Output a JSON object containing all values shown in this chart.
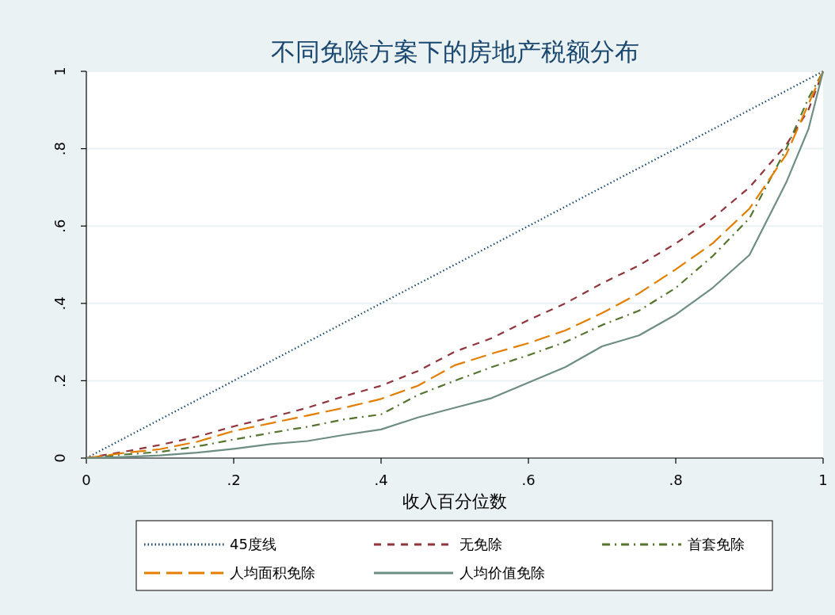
{
  "chart_data": {
    "type": "line",
    "title": "不同免除方案下的房地产税额分布",
    "xlabel": "收入百分位数",
    "x": [
      0,
      0.05,
      0.1,
      0.15,
      0.2,
      0.25,
      0.3,
      0.35,
      0.4,
      0.45,
      0.5,
      0.55,
      0.6,
      0.65,
      0.7,
      0.75,
      0.8,
      0.85,
      0.9,
      0.95,
      0.98,
      1
    ],
    "series": [
      {
        "name": "45度线",
        "color": "#1a476f",
        "line_style": "dotted",
        "x": [
          0,
          1
        ],
        "values": [
          0,
          1
        ]
      },
      {
        "name": "无免除",
        "color": "#90353b",
        "line_style": "dashed",
        "values": [
          0,
          0.016,
          0.034,
          0.055,
          0.082,
          0.105,
          0.13,
          0.16,
          0.187,
          0.225,
          0.275,
          0.31,
          0.357,
          0.4,
          0.452,
          0.498,
          0.555,
          0.62,
          0.7,
          0.81,
          0.9,
          1
        ]
      },
      {
        "name": "首套免除",
        "color": "#55752f",
        "line_style": "dashdot",
        "values": [
          0,
          0.009,
          0.016,
          0.03,
          0.048,
          0.065,
          0.081,
          0.1,
          0.113,
          0.163,
          0.2,
          0.235,
          0.266,
          0.3,
          0.344,
          0.381,
          0.44,
          0.522,
          0.62,
          0.8,
          0.93,
          1
        ]
      },
      {
        "name": "人均面积免除",
        "color": "#e37e00",
        "line_style": "longdash",
        "values": [
          0,
          0.013,
          0.023,
          0.042,
          0.07,
          0.09,
          0.11,
          0.13,
          0.153,
          0.187,
          0.24,
          0.27,
          0.297,
          0.33,
          0.375,
          0.426,
          0.488,
          0.555,
          0.645,
          0.785,
          0.915,
          1
        ]
      },
      {
        "name": "人均价值免除",
        "color": "#6e8e84",
        "line_style": "solid",
        "values": [
          0,
          0.003,
          0.007,
          0.014,
          0.024,
          0.036,
          0.044,
          0.06,
          0.074,
          0.105,
          0.13,
          0.155,
          0.195,
          0.235,
          0.289,
          0.317,
          0.371,
          0.44,
          0.525,
          0.713,
          0.85,
          1
        ]
      }
    ],
    "xlim": [
      0,
      1
    ],
    "ylim": [
      0,
      1
    ],
    "xticks": [
      0,
      {
        "value": 0.2,
        "label": ".2"
      },
      {
        "value": 0.4,
        "label": ".4"
      },
      {
        "value": 0.6,
        "label": ".6"
      },
      {
        "value": 0.8,
        "label": ".8"
      },
      1
    ],
    "yticks": [
      0,
      {
        "value": 0.2,
        "label": ".2"
      },
      {
        "value": 0.4,
        "label": ".4"
      },
      {
        "value": 0.6,
        "label": ".6"
      },
      {
        "value": 0.8,
        "label": ".8"
      },
      1
    ],
    "grid": "y",
    "legend": "bottom"
  }
}
